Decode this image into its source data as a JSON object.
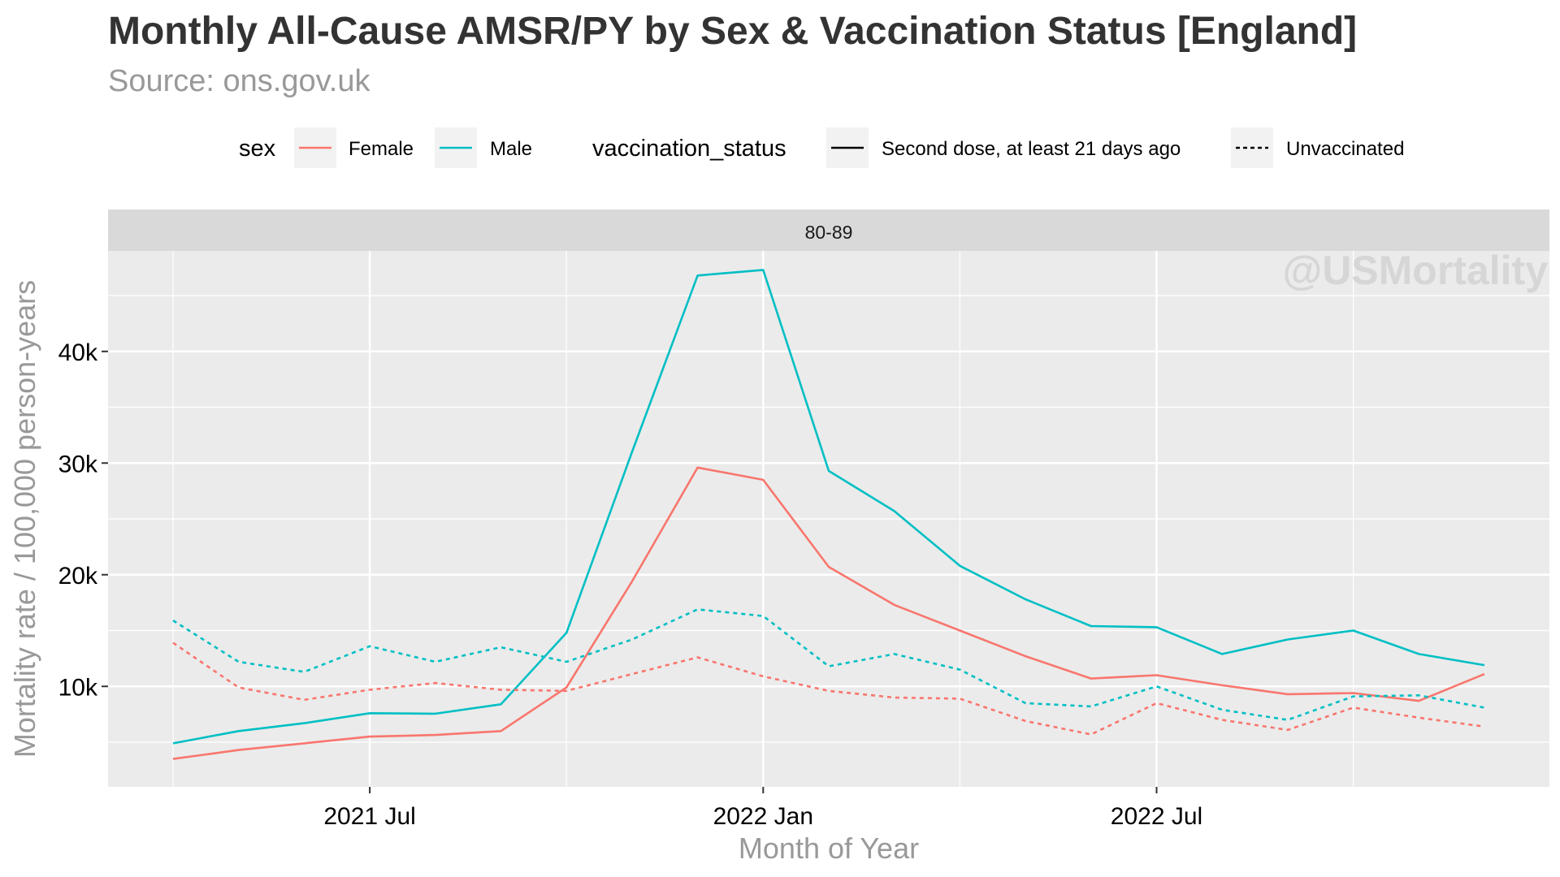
{
  "title": "Monthly All-Cause AMSR/PY by Sex & Vaccination Status [England]",
  "subtitle": "Source: ons.gov.uk",
  "watermark": "@USMortality",
  "legend": {
    "sex_title": "sex",
    "vacc_title": "vaccination_status",
    "sex_items": [
      {
        "label": "Female",
        "color": "#F8766D"
      },
      {
        "label": "Male",
        "color": "#00BFC4"
      }
    ],
    "vacc_items": [
      {
        "label": "Second dose, at least 21 days ago",
        "linetype": "solid"
      },
      {
        "label": "Unvaccinated",
        "linetype": "dashed"
      }
    ]
  },
  "chart_data": {
    "type": "line",
    "facet_label": "80-89",
    "xlabel": "Month of Year",
    "ylabel": "Mortality rate / 100,000 person-years",
    "x": [
      "2021-04",
      "2021-05",
      "2021-06",
      "2021-07",
      "2021-08",
      "2021-09",
      "2021-10",
      "2021-11",
      "2021-12",
      "2022-01",
      "2022-02",
      "2022-03",
      "2022-04",
      "2022-05",
      "2022-06",
      "2022-07",
      "2022-08",
      "2022-09",
      "2022-10",
      "2022-11",
      "2022-12"
    ],
    "x_ticks": [
      {
        "x": "2021-07",
        "label": "2021 Jul"
      },
      {
        "x": "2022-01",
        "label": "2022 Jan"
      },
      {
        "x": "2022-07",
        "label": "2022 Jul"
      }
    ],
    "y_ticks": [
      {
        "value": 10000,
        "label": "10k"
      },
      {
        "value": 20000,
        "label": "20k"
      },
      {
        "value": 30000,
        "label": "30k"
      },
      {
        "value": 40000,
        "label": "40k"
      }
    ],
    "ylim": [
      1000,
      49000
    ],
    "grid": true,
    "legend_position": "top",
    "series": [
      {
        "sex": "Male",
        "vaccination_status": "Second dose, at least 21 days ago",
        "color": "#00BFC4",
        "linetype": "solid",
        "values": [
          4900,
          6000,
          6700,
          7600,
          7550,
          8400,
          14800,
          31000,
          46800,
          47300,
          29300,
          25700,
          20800,
          17800,
          15400,
          15300,
          12900,
          14200,
          15000,
          12900,
          11900
        ]
      },
      {
        "sex": "Female",
        "vaccination_status": "Second dose, at least 21 days ago",
        "color": "#F8766D",
        "linetype": "solid",
        "values": [
          3500,
          4300,
          4900,
          5500,
          5650,
          6000,
          9900,
          19400,
          29600,
          28500,
          20700,
          17300,
          15000,
          12700,
          10700,
          11000,
          10100,
          9300,
          9400,
          8700,
          11100
        ]
      },
      {
        "sex": "Male",
        "vaccination_status": "Unvaccinated",
        "color": "#00BFC4",
        "linetype": "dashed",
        "values": [
          15900,
          12200,
          11300,
          13600,
          12200,
          13500,
          12200,
          14200,
          16900,
          16300,
          11800,
          12900,
          11500,
          8500,
          8200,
          10000,
          7900,
          7000,
          9100,
          9200,
          8100
        ]
      },
      {
        "sex": "Female",
        "vaccination_status": "Unvaccinated",
        "color": "#F8766D",
        "linetype": "dashed",
        "values": [
          13900,
          9900,
          8800,
          9700,
          10300,
          9700,
          9600,
          11100,
          12600,
          10900,
          9600,
          9000,
          8900,
          6900,
          5700,
          8500,
          7000,
          6100,
          8100,
          7200,
          6400
        ]
      }
    ]
  }
}
